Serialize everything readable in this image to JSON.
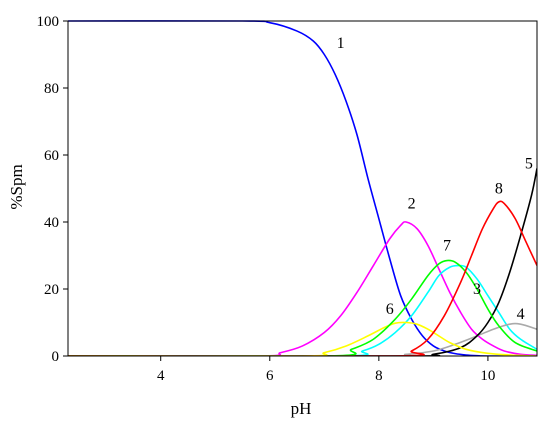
{
  "chart_data": {
    "type": "line",
    "xlabel": "pH",
    "ylabel": "%Spm",
    "xlim": [
      2.3,
      10.9
    ],
    "ylim": [
      0,
      100
    ],
    "x_ticks": [
      4,
      6,
      8,
      10
    ],
    "y_ticks": [
      0,
      20,
      40,
      60,
      80,
      100
    ],
    "grid": false,
    "legend": "none",
    "series": [
      {
        "name": "1",
        "color": "#0000FF",
        "x": [
          2.3,
          5.5,
          6.0,
          6.5,
          6.8,
          7.0,
          7.2,
          7.4,
          7.6,
          7.8,
          8.0,
          8.2,
          8.4,
          8.6,
          8.8,
          9.0,
          9.2,
          9.4,
          9.6,
          9.8,
          10.0,
          10.9
        ],
        "y": [
          100,
          100,
          99.5,
          97,
          94,
          90,
          84,
          76,
          66,
          53,
          41,
          29,
          18,
          11,
          6,
          3,
          1.5,
          0.7,
          0.3,
          0.1,
          0,
          0
        ]
      },
      {
        "name": "2",
        "color": "#FF00FF",
        "x": [
          2.3,
          5.8,
          6.2,
          6.6,
          7.0,
          7.3,
          7.6,
          7.9,
          8.2,
          8.4,
          8.5,
          8.7,
          8.9,
          9.1,
          9.3,
          9.5,
          9.7,
          9.9,
          10.1,
          10.3,
          10.6,
          10.9
        ],
        "y": [
          0,
          0,
          1,
          3,
          7,
          12,
          19,
          27,
          35,
          39,
          40,
          38,
          33,
          26,
          19,
          13,
          8,
          5,
          3,
          1.5,
          0.5,
          0.2
        ]
      },
      {
        "name": "3",
        "color": "#00FFFF",
        "x": [
          2.3,
          7.3,
          7.7,
          8.0,
          8.3,
          8.6,
          8.9,
          9.1,
          9.3,
          9.45,
          9.6,
          9.8,
          10.0,
          10.2,
          10.4,
          10.6,
          10.9
        ],
        "y": [
          0,
          0,
          1.5,
          3.5,
          7,
          12,
          19,
          24,
          26.5,
          27,
          26.5,
          23,
          18,
          13,
          8,
          5,
          2
        ]
      },
      {
        "name": "4",
        "color": "#AAAAAA",
        "x": [
          2.3,
          8.0,
          8.5,
          9.0,
          9.4,
          9.8,
          10.1,
          10.4,
          10.6,
          10.9
        ],
        "y": [
          0,
          0,
          0.5,
          1.5,
          3.5,
          6,
          8,
          9.5,
          9.5,
          8
        ]
      },
      {
        "name": "5",
        "color": "#000000",
        "x": [
          2.3,
          8.5,
          9.0,
          9.5,
          9.8,
          10.0,
          10.2,
          10.4,
          10.6,
          10.8,
          10.9
        ],
        "y": [
          0,
          0,
          0.5,
          2.5,
          6,
          10,
          16,
          25,
          36,
          48,
          56
        ]
      },
      {
        "name": "6",
        "color": "#FFFF00",
        "x": [
          2.3,
          6.6,
          7.0,
          7.4,
          7.8,
          8.1,
          8.3,
          8.5,
          8.7,
          8.9,
          9.1,
          9.3,
          9.6,
          10.0,
          10.5,
          10.9
        ],
        "y": [
          0,
          0,
          1,
          3,
          6,
          8.5,
          9.8,
          10,
          9.5,
          8,
          6,
          4,
          2,
          0.8,
          0.2,
          0
        ]
      },
      {
        "name": "7",
        "color": "#00FF00",
        "x": [
          2.3,
          7.1,
          7.5,
          7.9,
          8.3,
          8.6,
          8.9,
          9.1,
          9.25,
          9.4,
          9.6,
          9.8,
          10.0,
          10.2,
          10.5,
          10.9
        ],
        "y": [
          0,
          0,
          2,
          5,
          11,
          17,
          24,
          27.5,
          28.5,
          28,
          25,
          20,
          14,
          9,
          4,
          1.5
        ]
      },
      {
        "name": "8",
        "color": "#FF0000",
        "x": [
          2.3,
          8.3,
          8.6,
          8.9,
          9.2,
          9.5,
          9.7,
          9.9,
          10.1,
          10.2,
          10.3,
          10.5,
          10.7,
          10.9
        ],
        "y": [
          0,
          0,
          1.5,
          5,
          12,
          22,
          30,
          38,
          44,
          46,
          45.5,
          41,
          34,
          27
        ]
      }
    ],
    "annotations": [
      {
        "text": "1",
        "x": 7.3,
        "y": 92
      },
      {
        "text": "2",
        "x": 8.6,
        "y": 44
      },
      {
        "text": "3",
        "x": 9.8,
        "y": 18.5
      },
      {
        "text": "4",
        "x": 10.6,
        "y": 11
      },
      {
        "text": "5",
        "x": 10.75,
        "y": 56
      },
      {
        "text": "6",
        "x": 8.2,
        "y": 12.5
      },
      {
        "text": "7",
        "x": 9.25,
        "y": 31.5
      },
      {
        "text": "8",
        "x": 10.2,
        "y": 48.5
      }
    ]
  }
}
